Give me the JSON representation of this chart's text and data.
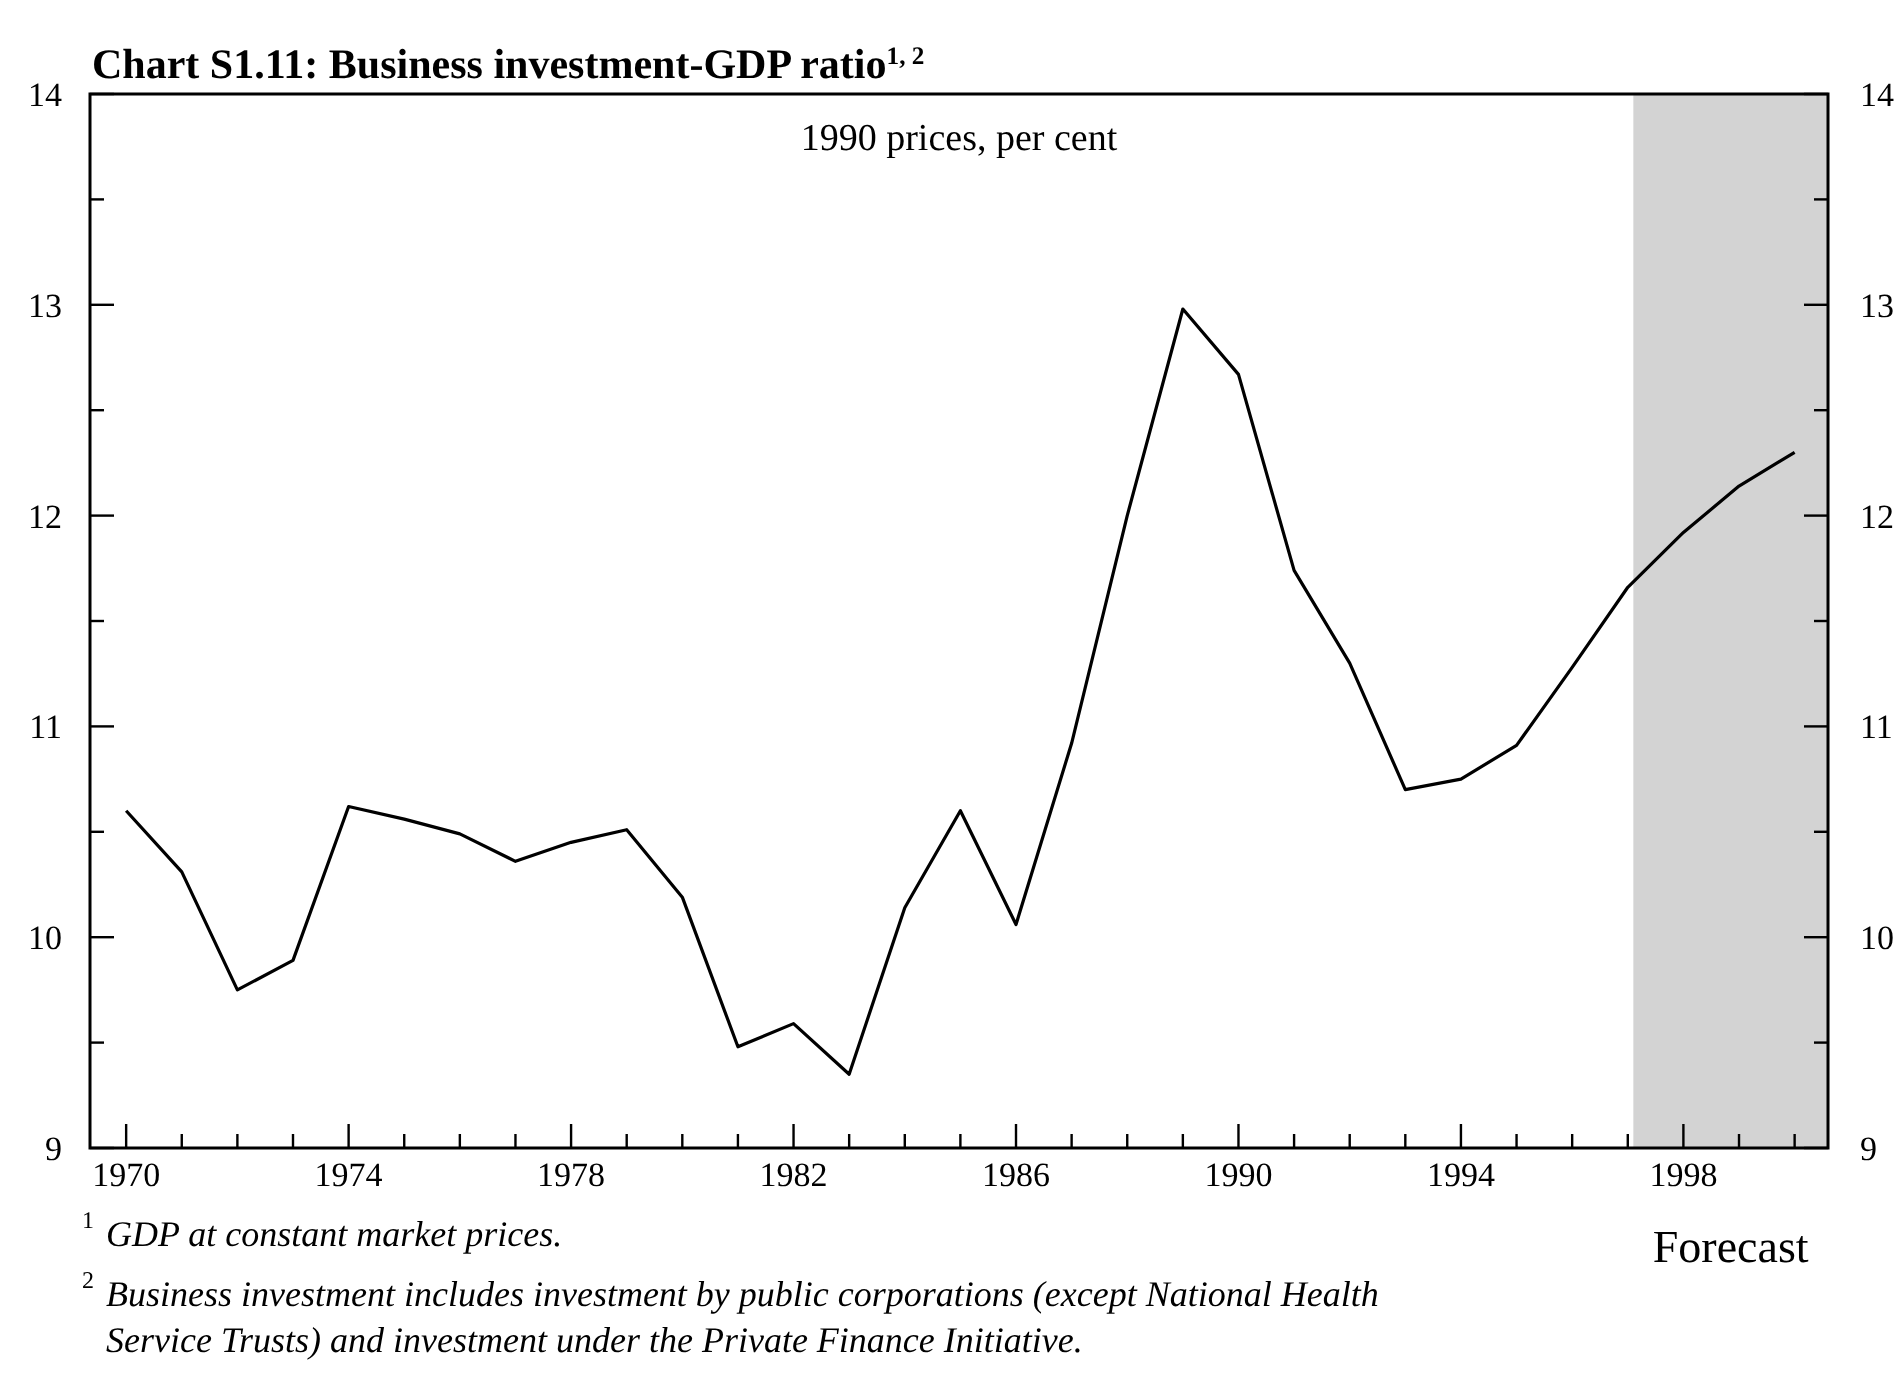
{
  "chart_data": {
    "type": "line",
    "title": "Chart S1.11: Business investment-GDP ratio$^{1, 2}$",
    "subtitle": "1990 prices, per cent",
    "x": [
      1970,
      1971,
      1972,
      1973,
      1974,
      1975,
      1976,
      1977,
      1978,
      1979,
      1980,
      1981,
      1982,
      1983,
      1984,
      1985,
      1986,
      1987,
      1988,
      1989,
      1990,
      1991,
      1992,
      1993,
      1994,
      1995,
      1996,
      1997,
      1998,
      1999,
      2000
    ],
    "series": [
      {
        "color": "#000000",
        "values": [
          10.6,
          10.31,
          9.75,
          9.89,
          10.62,
          10.56,
          10.49,
          10.36,
          10.45,
          10.51,
          10.19,
          9.48,
          9.59,
          9.35,
          10.14,
          10.6,
          10.06,
          10.92,
          12.0,
          12.98,
          12.67,
          11.74,
          11.3,
          10.7,
          10.75,
          10.91,
          11.28,
          11.66,
          11.92,
          12.14,
          12.3
        ]
      }
    ],
    "xlim": [
      1969.35,
      2000.6
    ],
    "xticks": [
      1970,
      {
        "value": 1971,
        "label": null
      },
      {
        "value": 1972,
        "label": null
      },
      {
        "value": 1973,
        "label": null
      },
      1974,
      {
        "value": 1975,
        "label": null
      },
      {
        "value": 1976,
        "label": null
      },
      {
        "value": 1977,
        "label": null
      },
      1978,
      {
        "value": 1979,
        "label": null
      },
      {
        "value": 1980,
        "label": null
      },
      {
        "value": 1981,
        "label": null
      },
      1982,
      {
        "value": 1983,
        "label": null
      },
      {
        "value": 1984,
        "label": null
      },
      {
        "value": 1985,
        "label": null
      },
      1986,
      {
        "value": 1987,
        "label": null
      },
      {
        "value": 1988,
        "label": null
      },
      {
        "value": 1989,
        "label": null
      },
      1990,
      {
        "value": 1991,
        "label": null
      },
      {
        "value": 1992,
        "label": null
      },
      {
        "value": 1993,
        "label": null
      },
      1994,
      {
        "value": 1995,
        "label": null
      },
      {
        "value": 1996,
        "label": null
      },
      {
        "value": 1997,
        "label": null
      },
      1998,
      {
        "value": 1999,
        "label": null
      },
      {
        "value": 2000,
        "label": null
      }
    ],
    "ylim": [
      9,
      14
    ],
    "yticks": [
      9,
      {
        "value": 9.5,
        "label": null
      },
      10,
      {
        "value": 10.5,
        "label": null
      },
      11,
      {
        "value": 11.5,
        "label": null
      },
      12,
      {
        "value": 12.5,
        "label": null
      },
      13,
      {
        "value": 13.5,
        "label": null
      },
      14
    ],
    "y2lim": [
      9,
      14
    ],
    "y2ticks": [
      9,
      {
        "value": 9.5,
        "label": null
      },
      10,
      {
        "value": 10.5,
        "label": null
      },
      11,
      {
        "value": 11.5,
        "label": null
      },
      12,
      {
        "value": 12.5,
        "label": null
      },
      13,
      {
        "value": 13.5,
        "label": null
      },
      14
    ],
    "bands": [
      {
        "axis": "x",
        "from": 1997.1,
        "to": 2000.6,
        "label": "Forecast",
        "color": "#d3d3d3"
      }
    ],
    "grid": false,
    "marker": "none",
    "line_style": "solid",
    "annotations": [
      "$^{1}$GDP at constant market prices.",
      "$^{2}$Business investment includes investment by public corporations (except National Health Service Trusts) and investment under the Private Finance Initiative."
    ]
  }
}
